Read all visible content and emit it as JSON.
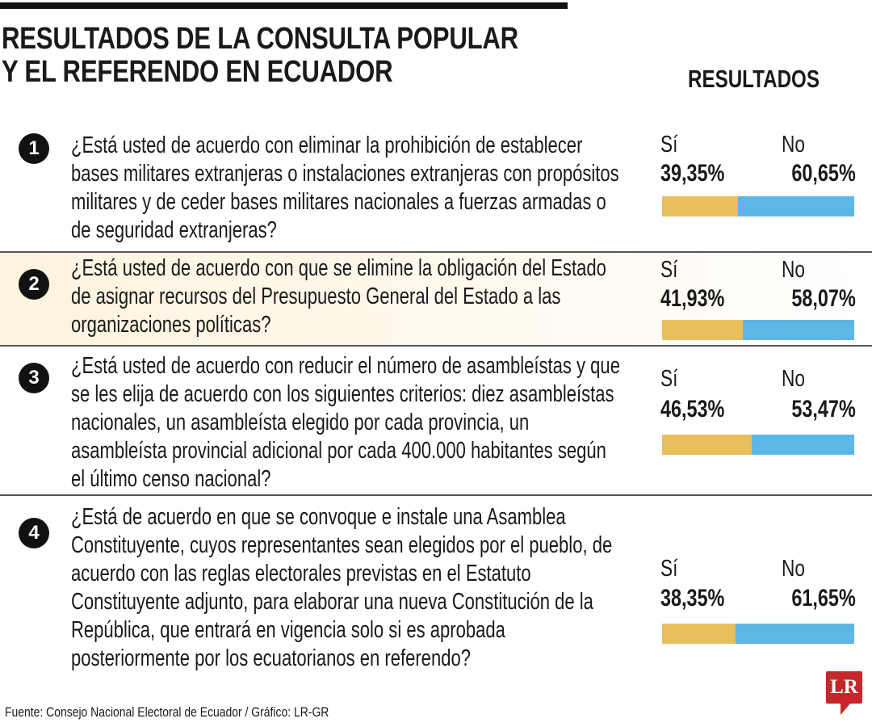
{
  "title_lines": [
    "RESULTADOS DE LA CONSULTA POPULAR",
    "Y EL REFERENDO EN ECUADOR"
  ],
  "results_header": "RESULTADOS",
  "yes_label": "Sí",
  "no_label": "No",
  "colors": {
    "yes": "#e8bf5a",
    "no": "#5db7e6"
  },
  "questions": [
    {
      "number": "1",
      "lines": [
        "¿Está usted de acuerdo con eliminar la prohibición de establecer",
        "bases militares extranjeras o instalaciones extranjeras con propósitos",
        "militares y de ceder bases militares nacionales a fuerzas armadas o",
        "de seguridad extranjeras?"
      ],
      "yes": "39,35%",
      "no": "60,65%"
    },
    {
      "number": "2",
      "lines": [
        "¿Está usted de acuerdo con que se elimine la obligación del Estado",
        "de asignar recursos del Presupuesto General del Estado a las",
        "organizaciones políticas?"
      ],
      "yes": "41,93%",
      "no": "58,07%"
    },
    {
      "number": "3",
      "lines": [
        "¿Está usted de acuerdo con reducir el número de asambleístas y que",
        "se les elija de acuerdo con los siguientes criterios: diez asambleístas",
        "nacionales, un asambleísta elegido por cada provincia, un",
        "asambleísta provincial adicional por cada 400.000 habitantes según",
        "el último censo nacional?"
      ],
      "yes": "46,53%",
      "no": "53,47%"
    },
    {
      "number": "4",
      "lines": [
        "¿Está de acuerdo en que se convoque e instale una Asamblea",
        "Constituyente, cuyos representantes sean elegidos por el pueblo, de",
        "acuerdo con las reglas electorales previstas en el Estatuto",
        "Constituyente adjunto, para elaborar una nueva Constitución de la",
        "República, que entrará en vigencia solo si es aprobada",
        "posteriormente por los ecuatorianos en referendo?"
      ],
      "yes": "38,35%",
      "no": "61,65%"
    }
  ],
  "source": "Fuente: Consejo Nacional Electoral de Ecuador / Gráfico: LR-GR",
  "logo_text": "LR",
  "chart_data": {
    "type": "bar",
    "stacked": true,
    "orientation": "horizontal",
    "categories": [
      "1",
      "2",
      "3",
      "4"
    ],
    "series": [
      {
        "name": "Sí",
        "values": [
          39.35,
          41.93,
          46.53,
          38.35
        ]
      },
      {
        "name": "No",
        "values": [
          60.65,
          58.07,
          53.47,
          61.65
        ]
      }
    ],
    "title": "RESULTADOS DE LA CONSULTA POPULAR Y EL REFERENDO EN ECUADOR",
    "xlim": [
      0,
      100
    ]
  }
}
